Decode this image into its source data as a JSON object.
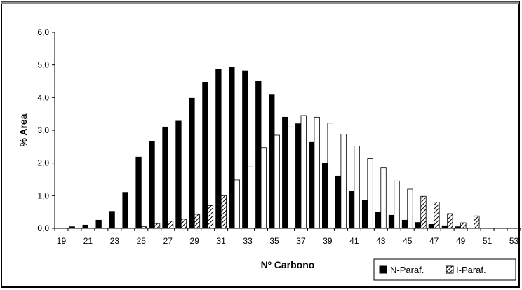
{
  "chart_data": {
    "type": "bar",
    "title": "",
    "xlabel": "Nº Carbono",
    "ylabel": "% Area",
    "ylim": [
      0,
      6
    ],
    "yticks": [
      "0,0",
      "1,0",
      "2,0",
      "3,0",
      "4,0",
      "5,0",
      "6,0"
    ],
    "categories": [
      19,
      20,
      21,
      22,
      23,
      24,
      25,
      26,
      27,
      28,
      29,
      30,
      31,
      32,
      33,
      34,
      35,
      36,
      37,
      38,
      39,
      40,
      41,
      42,
      43,
      44,
      45,
      46,
      47,
      48,
      49,
      50,
      51,
      52,
      53
    ],
    "xtick_labels": [
      "19",
      "21",
      "23",
      "25",
      "27",
      "29",
      "31",
      "33",
      "35",
      "37",
      "39",
      "41",
      "43",
      "45",
      "47",
      "49",
      "51",
      "53"
    ],
    "grid": false,
    "legend_position": "bottom-right",
    "series": [
      {
        "name": "N-Paraf.",
        "color": "#000000",
        "pattern": "solid",
        "values": [
          0.0,
          0.05,
          0.1,
          0.25,
          0.52,
          1.1,
          2.18,
          2.66,
          3.1,
          3.28,
          3.98,
          4.47,
          4.87,
          4.93,
          4.82,
          4.5,
          4.1,
          3.4,
          3.2,
          2.63,
          2.0,
          1.6,
          1.13,
          0.87,
          0.5,
          0.4,
          0.25,
          0.18,
          0.12,
          0.08,
          0.05,
          0.0,
          0.0,
          0.0,
          0.0
        ]
      },
      {
        "name": "I-Paraf.",
        "color": "#ffffff",
        "pattern": "hatch",
        "values": [
          0.0,
          0.0,
          0.0,
          0.0,
          0.0,
          0.0,
          0.05,
          0.15,
          0.22,
          0.28,
          0.43,
          0.7,
          1.0,
          1.48,
          1.88,
          2.47,
          2.85,
          3.1,
          3.45,
          3.4,
          3.22,
          2.88,
          2.52,
          2.13,
          1.85,
          1.45,
          1.2,
          0.98,
          0.8,
          0.45,
          0.17,
          0.38,
          0.0,
          0.0,
          0.0
        ]
      }
    ]
  }
}
